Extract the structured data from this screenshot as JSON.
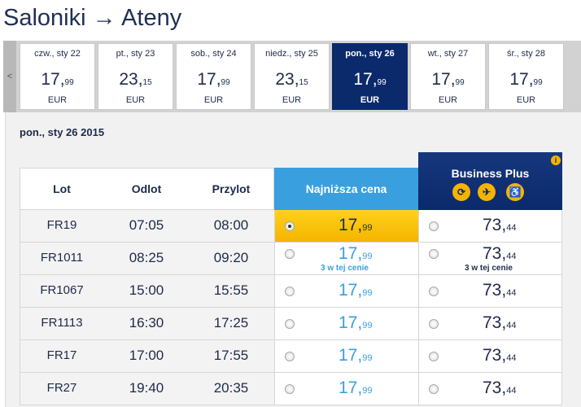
{
  "route": {
    "origin": "Saloniki",
    "arrow": "→",
    "destination": "Ateny"
  },
  "date_strip": {
    "prev_label": "<",
    "currency": "EUR",
    "days": [
      {
        "label": "czw., sty 22",
        "int": "17",
        "dec": "99",
        "selected": false
      },
      {
        "label": "pt., sty 23",
        "int": "23",
        "dec": "15",
        "selected": false
      },
      {
        "label": "sob., sty 24",
        "int": "17",
        "dec": "99",
        "selected": false
      },
      {
        "label": "niedz., sty 25",
        "int": "23",
        "dec": "15",
        "selected": false
      },
      {
        "label": "pon., sty 26",
        "int": "17",
        "dec": "99",
        "selected": true
      },
      {
        "label": "wt., sty 27",
        "int": "17",
        "dec": "99",
        "selected": false
      },
      {
        "label": "śr., sty 28",
        "int": "17",
        "dec": "99",
        "selected": false
      }
    ]
  },
  "selected_date": "pon., sty 26 2015",
  "table": {
    "headers": {
      "flight": "Lot",
      "departure": "Odlot",
      "arrival": "Przylot",
      "lowest": "Najniższa cena",
      "business": "Business Plus"
    },
    "business_icons": [
      "fast-track-icon",
      "priority-boarding-icon",
      "wheelchair-icon"
    ],
    "info_icon": "info-icon",
    "rows": [
      {
        "flight": "FR19",
        "dep": "07:05",
        "arr": "08:00",
        "low_int": "17",
        "low_dec": "99",
        "low_note": "",
        "biz_int": "73",
        "biz_dec": "44",
        "biz_note": "",
        "low_selected": true
      },
      {
        "flight": "FR1011",
        "dep": "08:25",
        "arr": "09:20",
        "low_int": "17",
        "low_dec": "99",
        "low_note": "3 w tej cenie",
        "biz_int": "73",
        "biz_dec": "44",
        "biz_note": "3 w tej cenie",
        "low_selected": false
      },
      {
        "flight": "FR1067",
        "dep": "15:00",
        "arr": "15:55",
        "low_int": "17",
        "low_dec": "99",
        "low_note": "",
        "biz_int": "73",
        "biz_dec": "44",
        "biz_note": "",
        "low_selected": false
      },
      {
        "flight": "FR1113",
        "dep": "16:30",
        "arr": "17:25",
        "low_int": "17",
        "low_dec": "99",
        "low_note": "",
        "biz_int": "73",
        "biz_dec": "44",
        "biz_note": "",
        "low_selected": false
      },
      {
        "flight": "FR17",
        "dep": "17:00",
        "arr": "17:55",
        "low_int": "17",
        "low_dec": "99",
        "low_note": "",
        "biz_int": "73",
        "biz_dec": "44",
        "biz_note": "",
        "low_selected": false
      },
      {
        "flight": "FR27",
        "dep": "19:40",
        "arr": "20:35",
        "low_int": "17",
        "low_dec": "99",
        "low_note": "",
        "biz_int": "73",
        "biz_dec": "44",
        "biz_note": "",
        "low_selected": false
      }
    ]
  },
  "colors": {
    "navy": "#0b2a6c",
    "blue": "#3a9fdf",
    "yellow": "#f5b400"
  }
}
